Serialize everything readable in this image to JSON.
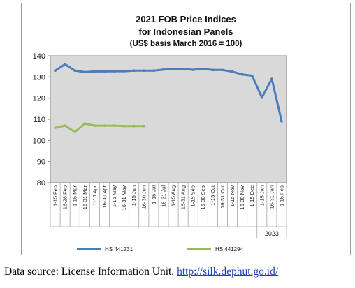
{
  "chart_data": {
    "type": "line",
    "title": "2021 FOB Price Indices",
    "subtitle": "for Indonesian Panels",
    "note": "(US$ basis March 2016 = 100)",
    "categories": [
      "1-15 Feb",
      "16-28 Feb",
      "1-15 Mar",
      "16-31 Mar",
      "1-15 Apr",
      "16-30 Apr",
      "1-15 May",
      "16-31 May",
      "1-15 Jun",
      "16-30 Jun",
      "1-15 Jul",
      "16-31 Jul",
      "1-15 Aug",
      "16-31 Aug",
      "1-15 Sep",
      "16-30 Sep",
      "1-15 Oct",
      "16-31 Oct",
      "1-15 Nov",
      "16-30 Nov",
      "1-15 Dec",
      "1-15 Jan",
      "16-31 Jan",
      "1-15 Feb"
    ],
    "year_label": "2023",
    "series": [
      {
        "name": "HS 441231",
        "color": "#4a7ebb",
        "values": [
          133,
          136,
          133,
          132.3,
          132.6,
          132.6,
          132.7,
          132.7,
          133,
          133,
          133,
          133.5,
          133.8,
          133.8,
          133.4,
          133.8,
          133.3,
          133.3,
          132.5,
          131.2,
          130.6,
          120.3,
          129.1,
          109
        ]
      },
      {
        "name": "HS 441294",
        "color": "#9bbb59",
        "values": [
          106,
          107,
          104,
          108,
          107,
          107,
          107,
          106.8,
          106.8,
          106.8,
          null,
          null,
          null,
          null,
          null,
          null,
          null,
          null,
          null,
          null,
          null,
          null,
          null,
          null
        ]
      }
    ],
    "ylim": [
      80,
      140
    ],
    "yticks": [
      80,
      90,
      100,
      110,
      120,
      130,
      140
    ],
    "ytick_labels": [
      "80",
      "90",
      "100",
      "110",
      "120",
      "130",
      "140"
    ],
    "grid": false,
    "legend_position": "bottom",
    "plot_background": "#d9d9d9"
  },
  "source": {
    "text": "Data source: License Information Unit.",
    "link": "http://silk.dephut.go.id/"
  }
}
